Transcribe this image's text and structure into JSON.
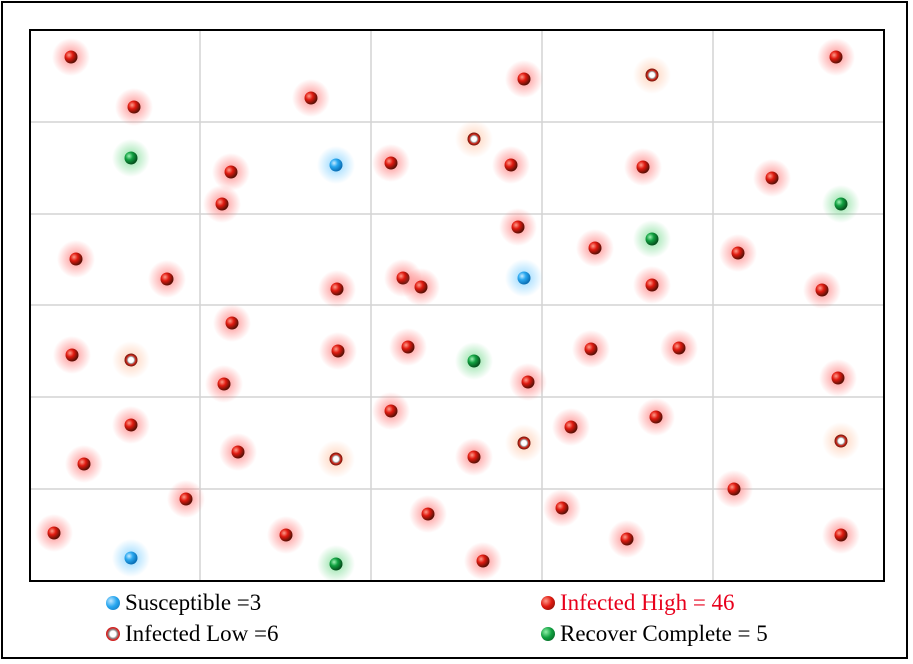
{
  "legend": {
    "susceptible": "Susceptible =3",
    "infected_high": "Infected High = 46",
    "infected_low": "Infected Low =6",
    "recover": "Recover Complete = 5"
  },
  "colors": {
    "susceptible": "#2aa8f0",
    "infected_high": "#e01a10",
    "infected_low": "#ffffff",
    "recover": "#10a040",
    "infected_high_text": "#e8001c"
  },
  "agents": {
    "susceptible": [
      [
        336,
        165
      ],
      [
        524,
        278
      ],
      [
        131,
        558
      ]
    ],
    "recover": [
      [
        131,
        158
      ],
      [
        841,
        204
      ],
      [
        652,
        239
      ],
      [
        474,
        361
      ],
      [
        336,
        564
      ]
    ],
    "infected_low": [
      [
        652,
        75
      ],
      [
        474,
        139
      ],
      [
        131,
        360
      ],
      [
        336,
        459
      ],
      [
        524,
        443
      ],
      [
        841,
        441
      ]
    ],
    "infected_high": [
      [
        71,
        57
      ],
      [
        524,
        79
      ],
      [
        836,
        57
      ],
      [
        134,
        107
      ],
      [
        311,
        98
      ],
      [
        231,
        172
      ],
      [
        391,
        163
      ],
      [
        511,
        165
      ],
      [
        643,
        167
      ],
      [
        772,
        178
      ],
      [
        222,
        204
      ],
      [
        518,
        227
      ],
      [
        595,
        248
      ],
      [
        738,
        253
      ],
      [
        76,
        259
      ],
      [
        167,
        279
      ],
      [
        403,
        278
      ],
      [
        421,
        287
      ],
      [
        337,
        289
      ],
      [
        652,
        285
      ],
      [
        822,
        290
      ],
      [
        232,
        323
      ],
      [
        72,
        355
      ],
      [
        338,
        351
      ],
      [
        408,
        347
      ],
      [
        591,
        349
      ],
      [
        679,
        348
      ],
      [
        224,
        384
      ],
      [
        528,
        382
      ],
      [
        838,
        378
      ],
      [
        391,
        411
      ],
      [
        656,
        417
      ],
      [
        131,
        425
      ],
      [
        571,
        427
      ],
      [
        238,
        452
      ],
      [
        84,
        464
      ],
      [
        474,
        457
      ],
      [
        734,
        489
      ],
      [
        186,
        499
      ],
      [
        428,
        514
      ],
      [
        562,
        508
      ],
      [
        54,
        533
      ],
      [
        286,
        535
      ],
      [
        627,
        539
      ],
      [
        841,
        535
      ],
      [
        483,
        561
      ]
    ]
  }
}
